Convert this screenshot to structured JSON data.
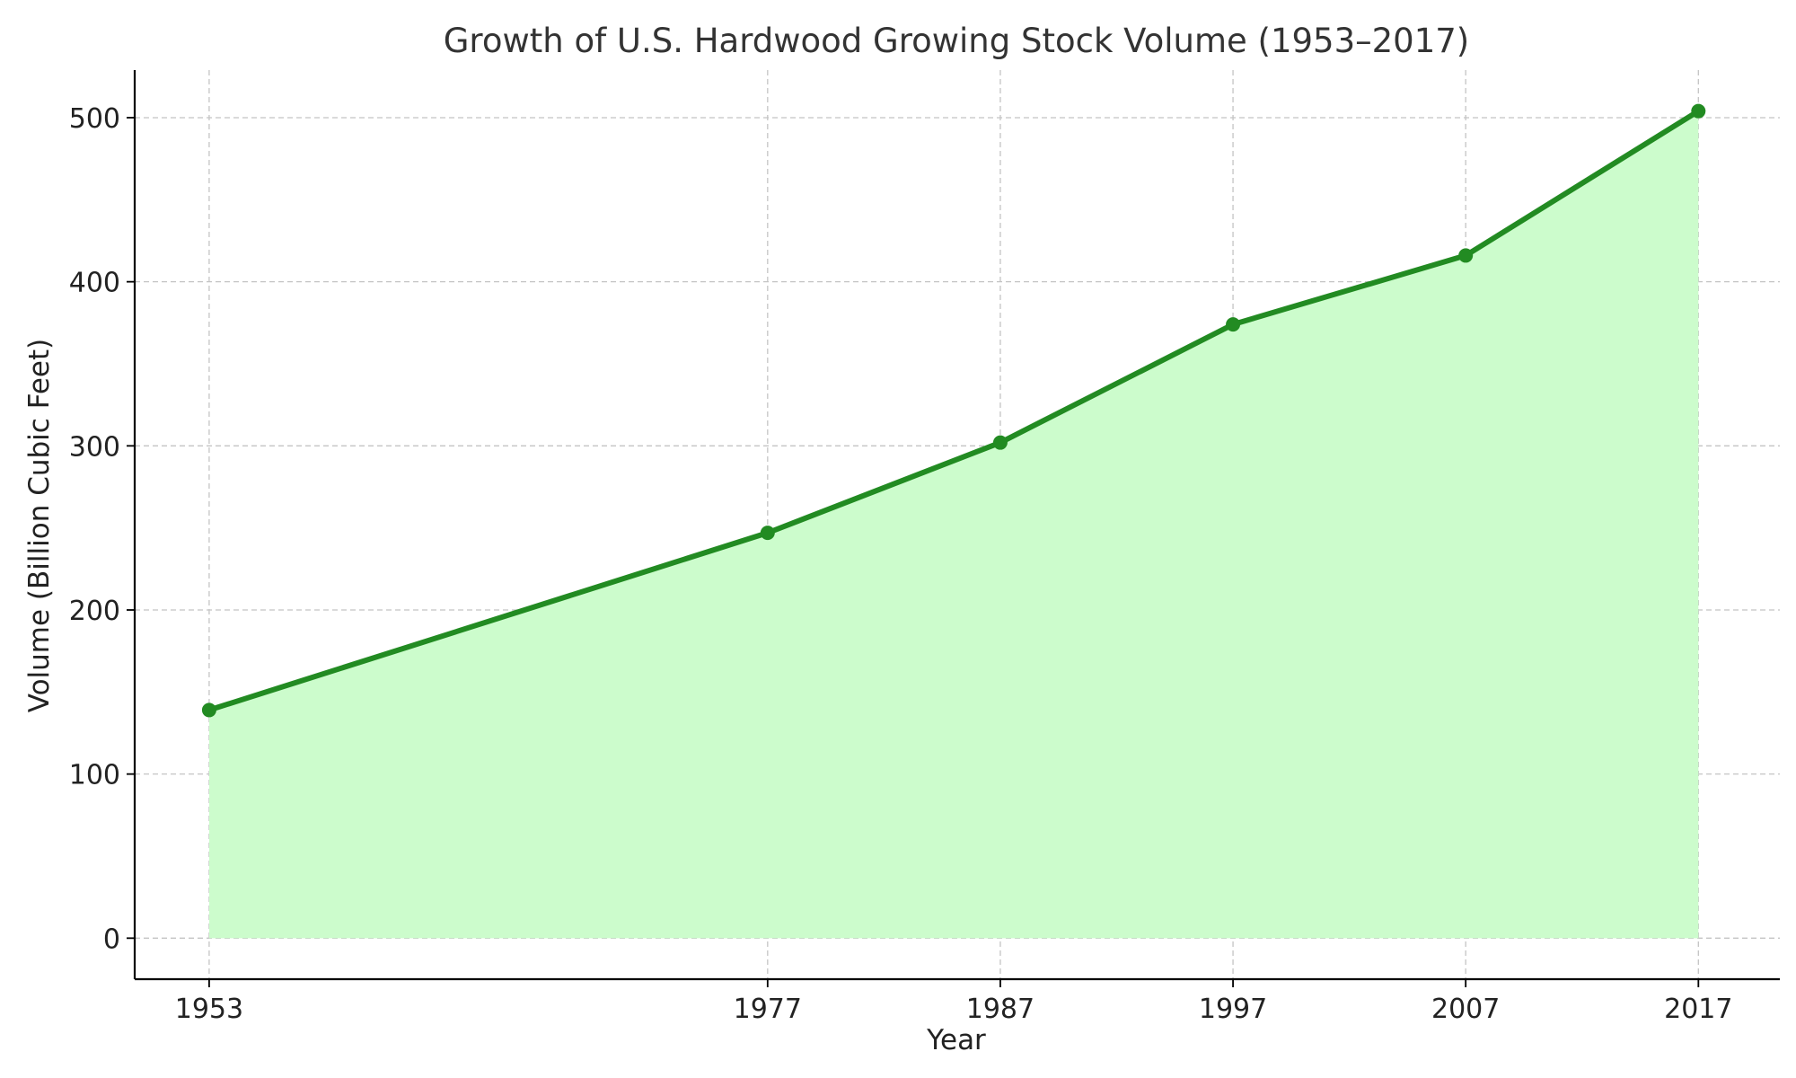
{
  "chart_data": {
    "type": "area",
    "title": "Growth of U.S. Hardwood Growing Stock Volume (1953–2017)",
    "xlabel": "Year",
    "ylabel": "Volume (Billion Cubic Feet)",
    "x": [
      1953,
      1977,
      1987,
      1997,
      2007,
      2017
    ],
    "x_tick_labels": [
      "1953",
      "1977",
      "1987",
      "1997",
      "2007",
      "2017"
    ],
    "series": [
      {
        "values": [
          139,
          247,
          302,
          374,
          416,
          504
        ]
      }
    ],
    "xlim": [
      1949.8,
      2020.5
    ],
    "ylim": [
      -25,
      529
    ],
    "y_ticks": [
      0,
      100,
      200,
      300,
      400,
      500
    ],
    "y_tick_labels": [
      "0",
      "100",
      "200",
      "300",
      "400",
      "500"
    ],
    "grid": true,
    "line_color": "#228b22",
    "fill_color": "#ccfccc"
  }
}
